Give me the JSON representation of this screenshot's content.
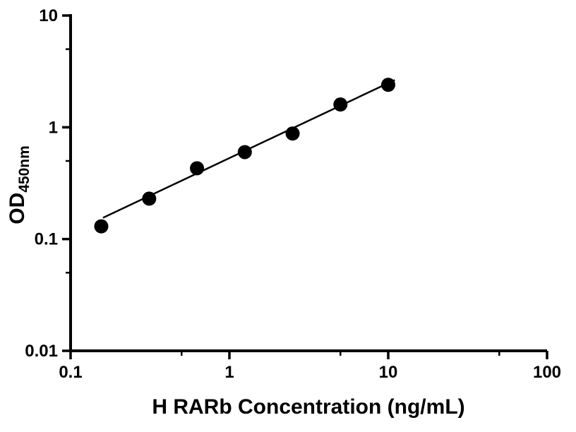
{
  "chart_data": {
    "type": "scatter",
    "title": "",
    "xlabel": "H RARb Concentration (ng/mL)",
    "ylabel": "OD",
    "ylabel_sub": "450nm",
    "x_scale": "log",
    "y_scale": "log",
    "xlim": [
      0.1,
      100
    ],
    "ylim": [
      0.01,
      10
    ],
    "x_ticks": [
      0.1,
      1,
      10,
      100
    ],
    "x_tick_labels": [
      "0.1",
      "1",
      "10",
      "100"
    ],
    "y_ticks": [
      0.01,
      0.1,
      1,
      10
    ],
    "y_tick_labels": [
      "0.01",
      "0.1",
      "1",
      "10"
    ],
    "x_minor_ticks": [
      0.5,
      5,
      50
    ],
    "y_minor_ticks": [
      0.05,
      0.5,
      5
    ],
    "grid": false,
    "legend": "none",
    "axis_color": "#000000",
    "series": [
      {
        "name": "standard-curve-fit-line",
        "type": "line",
        "color": "#000000",
        "x": [
          0.16,
          11.0
        ],
        "y": [
          0.155,
          2.65
        ]
      },
      {
        "name": "standard-curve-points",
        "type": "scatter",
        "marker": "circle",
        "color": "#000000",
        "x": [
          0.156,
          0.3125,
          0.625,
          1.25,
          2.5,
          5,
          10
        ],
        "y": [
          0.13,
          0.23,
          0.43,
          0.6,
          0.88,
          1.6,
          2.4
        ]
      }
    ]
  }
}
